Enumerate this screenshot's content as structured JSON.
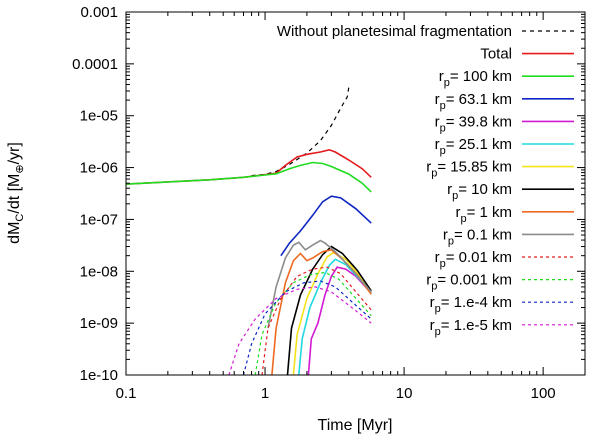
{
  "chart_data": {
    "type": "line",
    "x_scale": "log",
    "y_scale": "log",
    "xlim": [
      0.1,
      200
    ],
    "ylim": [
      1e-10,
      0.001
    ],
    "x_ticks": [
      0.1,
      1,
      10,
      100
    ],
    "x_tick_labels": [
      "0.1",
      "1",
      "10",
      "100"
    ],
    "y_ticks": [
      1e-10,
      1e-09,
      1e-08,
      1e-07,
      1e-06,
      1e-05,
      0.0001,
      0.001
    ],
    "y_tick_labels": [
      "1e-10",
      "1e-09",
      "1e-08",
      "1e-07",
      "1e-06",
      "1e-05",
      "0.0001",
      "0.001"
    ],
    "xlabel": "Time [Myr]",
    "ylabel": {
      "main": "dM",
      "sub1": "C",
      "mid": "/dt [M",
      "sub2": "⊕",
      "end": "/yr]"
    },
    "legend_position": "top-right",
    "grid": false,
    "series": [
      {
        "name": "Without planetesimal fragmentation",
        "label_main": "Without planetesimal fragmentation",
        "label_sub": "",
        "label_rest": "",
        "color": "#000000",
        "dash": "4,4",
        "points": [
          [
            0.8,
            7e-07
          ],
          [
            1.0,
            7.4e-07
          ],
          [
            1.2,
            8.4e-07
          ],
          [
            1.5,
            1.15e-06
          ],
          [
            2.0,
            1.9e-06
          ],
          [
            2.5,
            3.3e-06
          ],
          [
            3.0,
            6.5e-06
          ],
          [
            3.5,
            1.4e-05
          ],
          [
            3.9,
            2.3e-05
          ],
          [
            4.0,
            3.5e-05
          ]
        ]
      },
      {
        "name": "Total",
        "label_main": "Total",
        "label_sub": "",
        "label_rest": "",
        "color": "#e41a1c",
        "dash": "",
        "points": [
          [
            0.1,
            4.8e-07
          ],
          [
            0.2,
            5.3e-07
          ],
          [
            0.4,
            5.8e-07
          ],
          [
            0.7,
            6.5e-07
          ],
          [
            1.0,
            7.3e-07
          ],
          [
            1.2,
            7.8e-07
          ],
          [
            1.4,
            1.1e-06
          ],
          [
            1.7,
            1.6e-06
          ],
          [
            2.0,
            1.8e-06
          ],
          [
            2.5,
            2e-06
          ],
          [
            2.9,
            2.2e-06
          ],
          [
            3.2,
            2e-06
          ],
          [
            4.0,
            1.4e-06
          ],
          [
            5.0,
            9.5e-07
          ],
          [
            5.8,
            6.5e-07
          ]
        ]
      },
      {
        "name": "rp= 100 km",
        "label_main": "r",
        "label_sub": "p",
        "label_rest": "= 100 km",
        "color": "#1fdc1f",
        "dash": "",
        "points": [
          [
            0.1,
            4.8e-07
          ],
          [
            0.2,
            5.3e-07
          ],
          [
            0.4,
            5.8e-07
          ],
          [
            0.7,
            6.5e-07
          ],
          [
            1.0,
            7.2e-07
          ],
          [
            1.2,
            7.6e-07
          ],
          [
            1.5,
            9.5e-07
          ],
          [
            1.8,
            1.1e-06
          ],
          [
            2.2,
            1.25e-06
          ],
          [
            2.6,
            1.2e-06
          ],
          [
            3.0,
            1.05e-06
          ],
          [
            4.0,
            7.5e-07
          ],
          [
            5.0,
            5e-07
          ],
          [
            5.8,
            3.4e-07
          ]
        ]
      },
      {
        "name": "rp= 63.1 km",
        "label_main": "r",
        "label_sub": "p",
        "label_rest": "= 63.1 km",
        "color": "#0d26c4",
        "dash": "",
        "points": [
          [
            1.3,
            2e-08
          ],
          [
            1.5,
            3.5e-08
          ],
          [
            1.8,
            6e-08
          ],
          [
            2.2,
            1.2e-07
          ],
          [
            2.6,
            2.2e-07
          ],
          [
            3.0,
            2.8e-07
          ],
          [
            3.5,
            2.6e-07
          ],
          [
            4.5,
            1.6e-07
          ],
          [
            5.8,
            8.5e-08
          ]
        ]
      },
      {
        "name": "rp= 39.8 km",
        "label_main": "r",
        "label_sub": "p",
        "label_rest": "= 39.8 km",
        "color": "#d21ad2",
        "dash": "",
        "points": [
          [
            2.05,
            1e-10
          ],
          [
            2.15,
            5e-10
          ],
          [
            2.4,
            1e-09
          ],
          [
            2.7,
            3.5e-09
          ],
          [
            3.0,
            8e-09
          ],
          [
            3.3,
            1.2e-08
          ],
          [
            3.8,
            1.1e-08
          ],
          [
            4.5,
            8e-09
          ],
          [
            5.8,
            3.8e-09
          ]
        ]
      },
      {
        "name": "rp= 25.1 km",
        "label_main": "r",
        "label_sub": "p",
        "label_rest": "= 25.1 km",
        "color": "#22d8e0",
        "dash": "",
        "points": [
          [
            1.75,
            1e-10
          ],
          [
            1.85,
            5e-10
          ],
          [
            2.1,
            2e-09
          ],
          [
            2.5,
            6e-09
          ],
          [
            2.9,
            1.3e-08
          ],
          [
            3.2,
            1.7e-08
          ],
          [
            3.8,
            1.35e-08
          ],
          [
            4.8,
            7e-09
          ],
          [
            5.8,
            3.8e-09
          ]
        ]
      },
      {
        "name": "rp= 15.85 km",
        "label_main": "r",
        "label_sub": "p",
        "label_rest": "= 15.85 km",
        "color": "#f4e31a",
        "dash": "",
        "points": [
          [
            1.6,
            1e-10
          ],
          [
            1.7,
            6e-10
          ],
          [
            2.0,
            3e-09
          ],
          [
            2.4,
            9e-09
          ],
          [
            2.8,
            1.9e-08
          ],
          [
            3.1,
            2.3e-08
          ],
          [
            3.8,
            1.7e-08
          ],
          [
            4.8,
            8e-09
          ],
          [
            5.8,
            4e-09
          ]
        ]
      },
      {
        "name": "rp= 10 km",
        "label_main": "r",
        "label_sub": "p",
        "label_rest": "= 10 km",
        "color": "#000000",
        "dash": "",
        "points": [
          [
            1.45,
            1e-10
          ],
          [
            1.55,
            8e-10
          ],
          [
            1.8,
            3.5e-09
          ],
          [
            2.2,
            1.1e-08
          ],
          [
            2.6,
            2.1e-08
          ],
          [
            3.0,
            3e-08
          ],
          [
            3.6,
            2.2e-08
          ],
          [
            4.6,
            1.05e-08
          ],
          [
            5.8,
            4.2e-09
          ]
        ]
      },
      {
        "name": "rp= 1 km",
        "label_main": "r",
        "label_sub": "p",
        "label_rest": "= 1 km",
        "color": "#ee6a20",
        "dash": "",
        "points": [
          [
            1.12,
            1e-10
          ],
          [
            1.2,
            8e-10
          ],
          [
            1.4,
            6e-09
          ],
          [
            1.6,
            1.6e-08
          ],
          [
            1.8,
            2.2e-08
          ],
          [
            2.0,
            1.6e-08
          ],
          [
            2.2,
            1.8e-08
          ],
          [
            2.6,
            2.4e-08
          ],
          [
            3.0,
            2.6e-08
          ],
          [
            3.6,
            1.7e-08
          ],
          [
            4.6,
            8.5e-09
          ],
          [
            5.8,
            3.6e-09
          ]
        ]
      },
      {
        "name": "rp= 0.1 km",
        "label_main": "r",
        "label_sub": "p",
        "label_rest": "= 0.1 km",
        "color": "#8c8c8c",
        "dash": "",
        "points": [
          [
            1.05,
            8e-10
          ],
          [
            1.2,
            5e-09
          ],
          [
            1.4,
            1.8e-08
          ],
          [
            1.6,
            3.2e-08
          ],
          [
            1.75,
            3.6e-08
          ],
          [
            1.95,
            2.6e-08
          ],
          [
            2.2,
            3.2e-08
          ],
          [
            2.5,
            3.9e-08
          ],
          [
            2.7,
            3.5e-08
          ],
          [
            3.2,
            2.4e-08
          ],
          [
            4.2,
            1.1e-08
          ],
          [
            5.8,
            4e-09
          ]
        ]
      },
      {
        "name": "rp= 0.01 km",
        "label_main": "r",
        "label_sub": "p",
        "label_rest": "= 0.01 km",
        "color": "#e41a1c",
        "dash": "3,3",
        "points": [
          [
            0.95,
            1e-10
          ],
          [
            1.05,
            8e-10
          ],
          [
            1.3,
            3e-09
          ],
          [
            1.7,
            8e-09
          ],
          [
            2.2,
            1.1e-08
          ],
          [
            2.8,
            1.2e-08
          ],
          [
            3.5,
            9e-09
          ],
          [
            4.5,
            4e-09
          ],
          [
            5.8,
            1.8e-09
          ]
        ]
      },
      {
        "name": "rp= 0.001 km",
        "label_main": "r",
        "label_sub": "p",
        "label_rest": "= 0.001 km",
        "color": "#1fdc1f",
        "dash": "3,3",
        "points": [
          [
            0.85,
            1e-10
          ],
          [
            0.95,
            6e-10
          ],
          [
            1.2,
            2.5e-09
          ],
          [
            1.6,
            6e-09
          ],
          [
            2.1,
            8.5e-09
          ],
          [
            2.7,
            9.5e-09
          ],
          [
            3.4,
            7e-09
          ],
          [
            4.5,
            3e-09
          ],
          [
            5.8,
            1.4e-09
          ]
        ]
      },
      {
        "name": "rp= 1.e-4 km",
        "label_main": "r",
        "label_sub": "p",
        "label_rest": "= 1.e-4 km",
        "color": "#0d26c4",
        "dash": "3,3",
        "points": [
          [
            0.7,
            1e-10
          ],
          [
            0.8,
            4e-10
          ],
          [
            1.0,
            1.5e-09
          ],
          [
            1.4,
            4e-09
          ],
          [
            1.9,
            6e-09
          ],
          [
            2.5,
            6.5e-09
          ],
          [
            3.2,
            5e-09
          ],
          [
            4.5,
            2.2e-09
          ],
          [
            5.8,
            1.2e-09
          ]
        ]
      },
      {
        "name": "rp= 1.e-5 km",
        "label_main": "r",
        "label_sub": "p",
        "label_rest": "= 1.e-5 km",
        "color": "#d21ad2",
        "dash": "3,3",
        "points": [
          [
            0.55,
            1e-10
          ],
          [
            0.65,
            4e-10
          ],
          [
            0.85,
            1.2e-09
          ],
          [
            1.2,
            3e-09
          ],
          [
            1.7,
            4.5e-09
          ],
          [
            2.3,
            5e-09
          ],
          [
            3.0,
            4e-09
          ],
          [
            4.2,
            2e-09
          ],
          [
            5.8,
            1e-09
          ]
        ]
      }
    ]
  }
}
